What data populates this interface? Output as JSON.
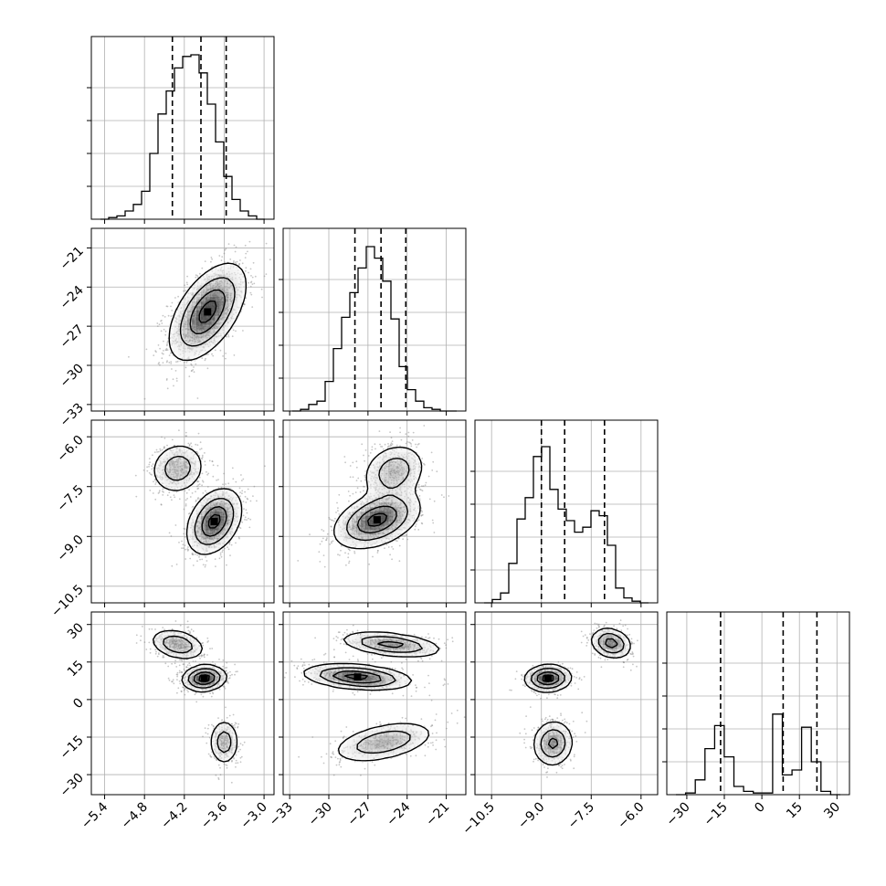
{
  "chart_data": {
    "type": "corner",
    "title": "",
    "grid": true,
    "colors": {
      "line": "#000000",
      "grid": "#b0b0b0",
      "density": "#3a3a3a",
      "points": "#808080"
    },
    "parameters": [
      {
        "range": [
          -5.6,
          -2.85
        ],
        "ticks": [
          -5.4,
          -4.8,
          -4.2,
          -3.6,
          -3.0
        ],
        "tick_labels": [
          "−5.4",
          "−4.8",
          "−4.2",
          "−3.6",
          "−3.0"
        ],
        "quantiles": [
          -4.38,
          -3.95,
          -3.57
        ],
        "histogram": [
          0,
          0.01,
          0.02,
          0.05,
          0.09,
          0.17,
          0.4,
          0.64,
          0.78,
          0.92,
          0.99,
          1.0,
          0.89,
          0.7,
          0.47,
          0.26,
          0.12,
          0.05,
          0.02,
          0.0
        ]
      },
      {
        "range": [
          -33.5,
          -19.5
        ],
        "ticks": [
          -33,
          -30,
          -27,
          -24,
          -21
        ],
        "tick_labels": [
          "−33",
          "−30",
          "−27",
          "−24",
          "−21"
        ],
        "quantiles": [
          -28.0,
          -26.0,
          -24.1
        ],
        "histogram": [
          0,
          0.01,
          0.04,
          0.06,
          0.18,
          0.38,
          0.57,
          0.72,
          0.87,
          1.0,
          0.93,
          0.79,
          0.56,
          0.27,
          0.13,
          0.06,
          0.02,
          0.01,
          0.0,
          0.0
        ]
      },
      {
        "range": [
          -11.0,
          -5.5
        ],
        "ticks": [
          -10.5,
          -9.0,
          -7.5,
          -6.0
        ],
        "tick_labels": [
          "−10.5",
          "−9.0",
          "−7.5",
          "−6.0"
        ],
        "quantiles": [
          -9.0,
          -8.3,
          -7.1
        ],
        "histogram": [
          0,
          0.02,
          0.06,
          0.24,
          0.51,
          0.64,
          0.89,
          0.95,
          0.69,
          0.57,
          0.5,
          0.43,
          0.46,
          0.56,
          0.53,
          0.35,
          0.09,
          0.03,
          0.01,
          0.0
        ]
      },
      {
        "range": [
          -38,
          35
        ],
        "ticks": [
          -30,
          -15,
          0,
          15,
          30
        ],
        "tick_labels": [
          "−30",
          "−15",
          "0",
          "15",
          "30"
        ],
        "quantiles": [
          -16.5,
          8.5,
          22.0
        ],
        "histogram": [
          0,
          0.01,
          0.09,
          0.28,
          0.42,
          0.23,
          0.05,
          0.02,
          0.01,
          0.01,
          0.49,
          0.12,
          0.15,
          0.41,
          0.2,
          0.02,
          0.0
        ]
      }
    ],
    "pairs": [
      {
        "row": 1,
        "col": 0,
        "components": [
          {
            "mx": -3.85,
            "my": -25.9,
            "sx": 0.28,
            "sy": 1.8,
            "rho": 0.55,
            "w": 1.0
          }
        ]
      },
      {
        "row": 2,
        "col": 0,
        "components": [
          {
            "mx": -4.3,
            "my": -6.95,
            "sx": 0.2,
            "sy": 0.38,
            "rho": 0.1,
            "w": 0.55
          },
          {
            "mx": -3.75,
            "my": -8.55,
            "sx": 0.2,
            "sy": 0.48,
            "rho": 0.35,
            "w": 1.0
          }
        ]
      },
      {
        "row": 2,
        "col": 1,
        "components": [
          {
            "mx": -25.0,
            "my": -7.05,
            "sx": 1.2,
            "sy": 0.42,
            "rho": 0.2,
            "w": 0.55
          },
          {
            "mx": -26.3,
            "my": -8.5,
            "sx": 1.6,
            "sy": 0.42,
            "rho": 0.4,
            "w": 1.0
          }
        ]
      },
      {
        "row": 3,
        "col": 0,
        "components": [
          {
            "mx": -4.3,
            "my": 22,
            "sx": 0.2,
            "sy": 3.0,
            "rho": -0.3,
            "w": 0.6
          },
          {
            "mx": -3.9,
            "my": 8.5,
            "sx": 0.16,
            "sy": 2.5,
            "rho": 0.1,
            "w": 1.0
          },
          {
            "mx": -3.6,
            "my": -17,
            "sx": 0.11,
            "sy": 4.5,
            "rho": 0.0,
            "w": 0.5
          }
        ]
      },
      {
        "row": 3,
        "col": 1,
        "components": [
          {
            "mx": -25.2,
            "my": 22,
            "sx": 1.9,
            "sy": 2.5,
            "rho": -0.4,
            "w": 0.6
          },
          {
            "mx": -27.8,
            "my": 9,
            "sx": 2.0,
            "sy": 2.5,
            "rho": -0.3,
            "w": 0.8
          },
          {
            "mx": -25.8,
            "my": -17,
            "sx": 1.9,
            "sy": 4.0,
            "rho": 0.45,
            "w": 0.5
          }
        ]
      },
      {
        "row": 3,
        "col": 2,
        "components": [
          {
            "mx": -6.9,
            "my": 22.5,
            "sx": 0.3,
            "sy": 3.0,
            "rho": -0.2,
            "w": 0.6
          },
          {
            "mx": -8.8,
            "my": 8.5,
            "sx": 0.34,
            "sy": 2.6,
            "rho": 0.05,
            "w": 0.8
          },
          {
            "mx": -8.65,
            "my": -17.5,
            "sx": 0.3,
            "sy": 4.5,
            "rho": 0.05,
            "w": 0.55
          }
        ]
      }
    ]
  }
}
